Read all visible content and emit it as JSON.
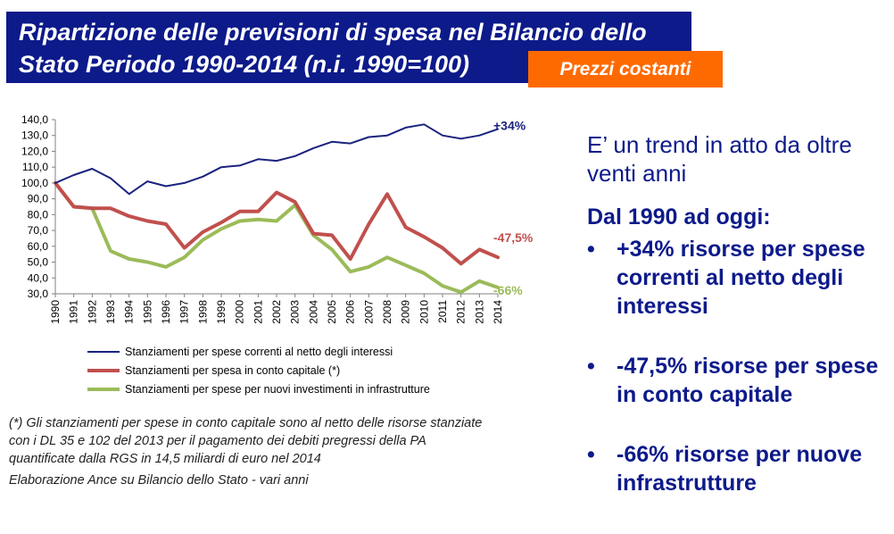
{
  "header": {
    "title_line1": "Ripartizione delle previsioni di spesa nel Bilancio dello",
    "title_line2": "Stato Periodo 1990-2014 (n.i. 1990=100)",
    "badge": "Prezzi  costanti"
  },
  "chart_data": {
    "type": "line",
    "x": [
      "1990",
      "1991",
      "1992",
      "1993",
      "1994",
      "1995",
      "1996",
      "1997",
      "1998",
      "1999",
      "2000",
      "2001",
      "2002",
      "2003",
      "2004",
      "2005",
      "2006",
      "2007",
      "2008",
      "2009",
      "2010",
      "2011",
      "2012",
      "2013",
      "2014"
    ],
    "ylim": [
      30,
      140
    ],
    "ytick_labels": [
      "140,0",
      "130,0",
      "120,0",
      "110,0",
      "100,0",
      "90,0",
      "80,0",
      "70,0",
      "60,0",
      "50,0",
      "40,0",
      "30,0"
    ],
    "ytick_values": [
      140,
      130,
      120,
      110,
      100,
      90,
      80,
      70,
      60,
      50,
      40,
      30
    ],
    "grid": false,
    "series": [
      {
        "name": "Stanziamenti per spese correnti al netto degli interessi",
        "color": "#1a237e",
        "end_label": "+34%",
        "values": [
          100,
          105,
          109,
          103,
          93,
          101,
          98,
          100,
          104,
          110,
          111,
          115,
          114,
          117,
          122,
          126,
          125,
          129,
          130,
          135,
          137,
          130,
          128,
          130,
          134
        ]
      },
      {
        "name": "Stanziamenti per spesa in conto capitale (*)",
        "color": "#c0504d",
        "end_label": "-47,5%",
        "values": [
          100,
          85,
          84,
          84,
          79,
          76,
          74,
          59,
          69,
          75,
          82,
          82,
          94,
          88,
          68,
          67,
          52,
          74,
          93,
          72,
          66,
          59,
          49,
          58,
          53
        ]
      },
      {
        "name": "Stanziamenti per spese per nuovi investimenti in infrastrutture",
        "color": "#9bbb59",
        "end_label": "-66%",
        "values": [
          100,
          85,
          84,
          57,
          52,
          50,
          47,
          53,
          64,
          71,
          76,
          77,
          76,
          86,
          67,
          58,
          44,
          47,
          53,
          48,
          43,
          35,
          31,
          38,
          34
        ]
      }
    ]
  },
  "notes": {
    "footnote_lines": [
      "(*) Gli stanziamenti per spese in conto capitale sono al netto delle risorse stanziate",
      "con i DL 35 e 102 del 2013 per il pagamento dei debiti pregressi della PA",
      "quantificate dalla RGS in 14,5 miliardi di euro nel 2014"
    ],
    "source": "Elaborazione Ance su Bilancio dello Stato  - vari anni"
  },
  "commentary": {
    "trend": "E’ un trend in atto da oltre venti anni",
    "since": "Dal 1990 ad oggi:",
    "bullet_char": "•",
    "bullets": [
      "+34% risorse per spese correnti al netto degli interessi",
      "-47,5% risorse per spese in conto capitale",
      "-66% risorse per nuove infrastrutture"
    ]
  }
}
